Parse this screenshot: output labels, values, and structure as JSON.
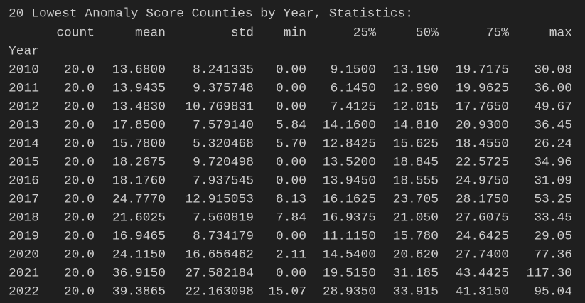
{
  "title": "20 Lowest Anomaly Score Counties by Year, Statistics:",
  "table": {
    "index_name": "Year",
    "columns": [
      "count",
      "mean",
      "std",
      "min",
      "25%",
      "50%",
      "75%",
      "max"
    ],
    "rows": [
      [
        "2010",
        "20.0",
        "13.6800",
        "8.241335",
        "0.00",
        "9.1500",
        "13.190",
        "19.7175",
        "30.08"
      ],
      [
        "2011",
        "20.0",
        "13.9435",
        "9.375748",
        "0.00",
        "6.1450",
        "12.990",
        "19.9625",
        "36.00"
      ],
      [
        "2012",
        "20.0",
        "13.4830",
        "10.769831",
        "0.00",
        "7.4125",
        "12.015",
        "17.7650",
        "49.67"
      ],
      [
        "2013",
        "20.0",
        "17.8500",
        "7.579140",
        "5.84",
        "14.1600",
        "14.810",
        "20.9300",
        "36.45"
      ],
      [
        "2014",
        "20.0",
        "15.7800",
        "5.320468",
        "5.70",
        "12.8425",
        "15.625",
        "18.4550",
        "26.24"
      ],
      [
        "2015",
        "20.0",
        "18.2675",
        "9.720498",
        "0.00",
        "13.5200",
        "18.845",
        "22.5725",
        "34.96"
      ],
      [
        "2016",
        "20.0",
        "18.1760",
        "7.937545",
        "0.00",
        "13.9450",
        "18.555",
        "24.9750",
        "31.09"
      ],
      [
        "2017",
        "20.0",
        "24.7770",
        "12.915053",
        "8.13",
        "16.1625",
        "23.705",
        "28.1750",
        "53.25"
      ],
      [
        "2018",
        "20.0",
        "21.6025",
        "7.560819",
        "7.84",
        "16.9375",
        "21.050",
        "27.6075",
        "33.45"
      ],
      [
        "2019",
        "20.0",
        "16.9465",
        "8.734179",
        "0.00",
        "11.1150",
        "15.780",
        "24.6425",
        "29.05"
      ],
      [
        "2020",
        "20.0",
        "24.1150",
        "16.656462",
        "2.11",
        "14.5400",
        "20.620",
        "27.7400",
        "77.36"
      ],
      [
        "2021",
        "20.0",
        "36.9150",
        "27.582184",
        "0.00",
        "19.5150",
        "31.185",
        "43.4425",
        "117.30"
      ],
      [
        "2022",
        "20.0",
        "39.3865",
        "22.163098",
        "15.07",
        "28.9350",
        "33.915",
        "41.3150",
        "95.04"
      ]
    ]
  }
}
